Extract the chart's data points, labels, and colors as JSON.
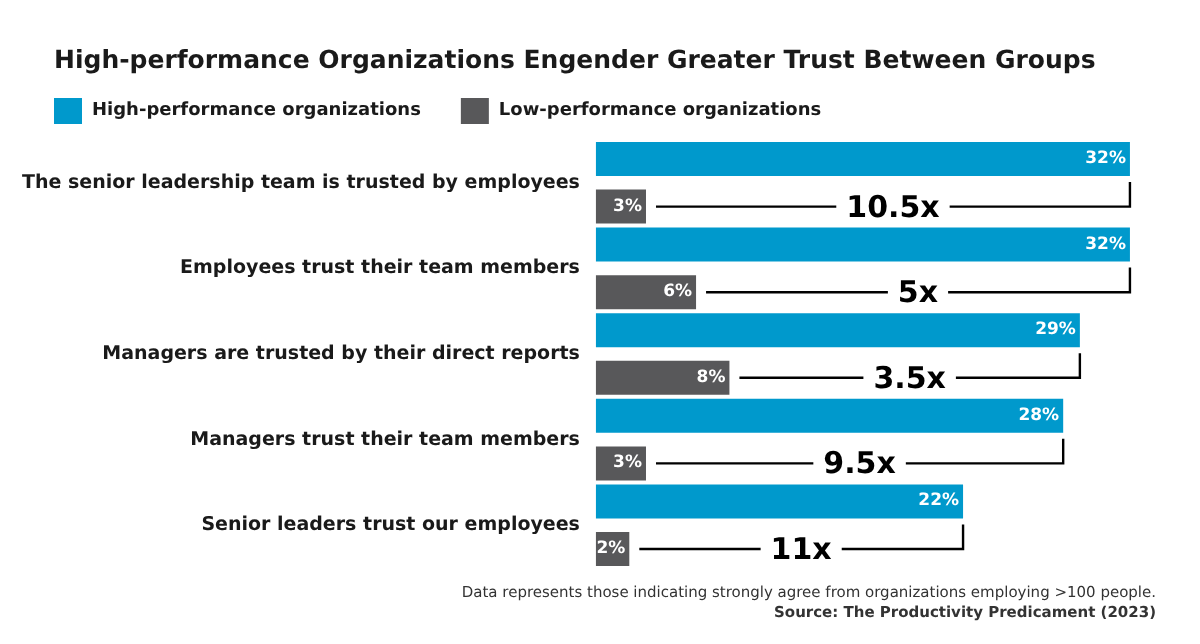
{
  "chart_data": {
    "type": "bar",
    "orientation": "horizontal",
    "title": "High-performance Organizations Engender Greater Trust Between Groups",
    "categories": [
      "The senior leadership team is trusted by employees",
      "Employees trust their team members",
      "Managers are trusted by their direct reports",
      "Managers trust their team members",
      "Senior leaders trust our employees"
    ],
    "series": [
      {
        "name": "High-performance organizations",
        "color": "#0099cc",
        "values": [
          32,
          32,
          29,
          28,
          22
        ],
        "value_labels": [
          "32%",
          "32%",
          "29%",
          "28%",
          "22%"
        ]
      },
      {
        "name": "Low-performance organizations",
        "color": "#58585a",
        "values": [
          3,
          6,
          8,
          3,
          2
        ],
        "value_labels": [
          "3%",
          "6%",
          "8%",
          "3%",
          "2%"
        ]
      }
    ],
    "legend": "top left",
    "annotations": [
      {
        "text": "10.5x",
        "y": "The senior leadership team is trusted by employees"
      },
      {
        "text": "5x",
        "y": "Employees trust their team members"
      },
      {
        "text": "3.5x",
        "y": "Managers are trusted by their direct reports"
      },
      {
        "text": "9.5x",
        "y": "Managers trust their team members"
      },
      {
        "text": "11x",
        "y": "Senior leaders trust our employees"
      },
      "Data represents those indicating strongly agree from organizations employing >100 people.",
      "Source: The Productivity Predicament (2023)"
    ]
  }
}
